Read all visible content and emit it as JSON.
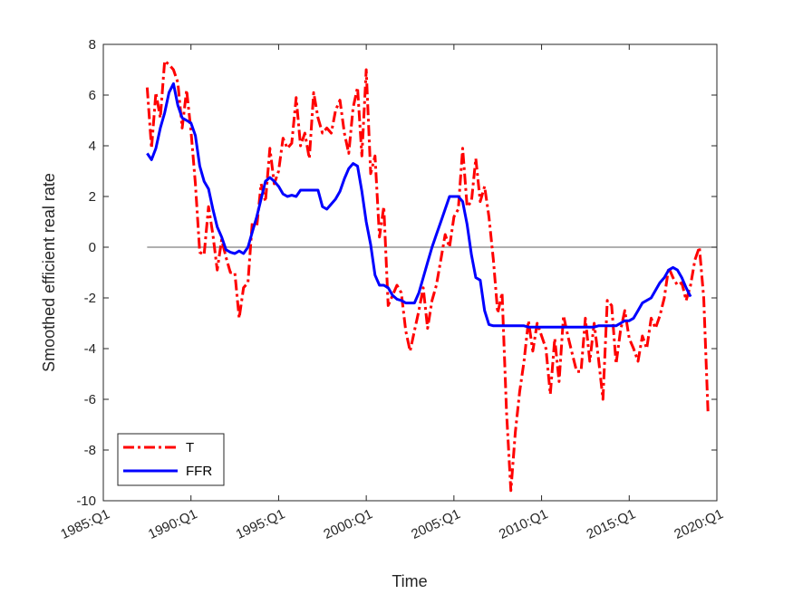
{
  "chart_data": {
    "type": "line",
    "xlabel": "Time",
    "ylabel": "Smoothed efficient real rate",
    "xlim": [
      1985.0,
      2020.0
    ],
    "ylim": [
      -10,
      8
    ],
    "x_tick_values": [
      1985,
      1990,
      1995,
      2000,
      2005,
      2010,
      2015,
      2020
    ],
    "x_tick_labels": [
      "1985:Q1",
      "1990:Q1",
      "1995:Q1",
      "2000:Q1",
      "2005:Q1",
      "2010:Q1",
      "2015:Q1",
      "2020:Q1"
    ],
    "y_ticks": [
      -10,
      -8,
      -6,
      -4,
      -2,
      0,
      2,
      4,
      6,
      8
    ],
    "y_tick_labels": [
      "-10",
      "-8",
      "-6",
      "-4",
      "-2",
      "0",
      "2",
      "4",
      "6",
      "8"
    ],
    "grid": false,
    "legend": {
      "position": "bottom-left"
    },
    "reference_line": {
      "y": 0,
      "x_range": [
        1987.5,
        2020.0
      ],
      "color": "#808080"
    },
    "series": [
      {
        "name": "T",
        "color": "#ff0000",
        "style": "dash-dot",
        "points": [
          [
            1987.5,
            6.3
          ],
          [
            1987.75,
            3.9
          ],
          [
            1988.0,
            6.1
          ],
          [
            1988.25,
            5.1
          ],
          [
            1988.5,
            7.35
          ],
          [
            1988.75,
            7.2
          ],
          [
            1989.0,
            7.0
          ],
          [
            1989.25,
            6.5
          ],
          [
            1989.5,
            4.7
          ],
          [
            1989.75,
            6.2
          ],
          [
            1990.0,
            4.6
          ],
          [
            1990.25,
            2.5
          ],
          [
            1990.5,
            -0.2
          ],
          [
            1990.75,
            -0.3
          ],
          [
            1991.0,
            1.6
          ],
          [
            1991.25,
            0.5
          ],
          [
            1991.5,
            -0.9
          ],
          [
            1991.75,
            0.3
          ],
          [
            1992.0,
            -0.4
          ],
          [
            1992.25,
            -1.0
          ],
          [
            1992.5,
            -1.0
          ],
          [
            1992.75,
            -2.8
          ],
          [
            1993.0,
            -1.6
          ],
          [
            1993.25,
            -1.4
          ],
          [
            1993.5,
            1.0
          ],
          [
            1993.75,
            0.8
          ],
          [
            1994.0,
            2.5
          ],
          [
            1994.25,
            1.8
          ],
          [
            1994.5,
            3.9
          ],
          [
            1994.75,
            2.5
          ],
          [
            1995.0,
            3.0
          ],
          [
            1995.25,
            4.3
          ],
          [
            1995.5,
            3.9
          ],
          [
            1995.75,
            4.1
          ],
          [
            1996.0,
            5.9
          ],
          [
            1996.25,
            4.0
          ],
          [
            1996.5,
            4.5
          ],
          [
            1996.75,
            3.5
          ],
          [
            1997.0,
            6.1
          ],
          [
            1997.25,
            5.1
          ],
          [
            1997.5,
            4.5
          ],
          [
            1997.75,
            4.7
          ],
          [
            1998.0,
            4.5
          ],
          [
            1998.25,
            5.4
          ],
          [
            1998.5,
            5.8
          ],
          [
            1998.75,
            4.5
          ],
          [
            1999.0,
            3.7
          ],
          [
            1999.25,
            5.5
          ],
          [
            1999.5,
            6.3
          ],
          [
            1999.75,
            3.6
          ],
          [
            2000.0,
            7.0
          ],
          [
            2000.25,
            2.9
          ],
          [
            2000.5,
            3.6
          ],
          [
            2000.75,
            0.4
          ],
          [
            2001.0,
            1.6
          ],
          [
            2001.25,
            -2.3
          ],
          [
            2001.5,
            -1.9
          ],
          [
            2001.75,
            -1.5
          ],
          [
            2002.0,
            -1.8
          ],
          [
            2002.25,
            -3.3
          ],
          [
            2002.5,
            -4.1
          ],
          [
            2002.75,
            -3.3
          ],
          [
            2003.0,
            -2.5
          ],
          [
            2003.25,
            -1.6
          ],
          [
            2003.5,
            -3.2
          ],
          [
            2003.75,
            -2.1
          ],
          [
            2004.0,
            -1.5
          ],
          [
            2004.25,
            -0.5
          ],
          [
            2004.5,
            0.5
          ],
          [
            2004.75,
            0.0
          ],
          [
            2005.0,
            1.2
          ],
          [
            2005.25,
            1.5
          ],
          [
            2005.5,
            3.9
          ],
          [
            2005.75,
            1.6
          ],
          [
            2006.0,
            1.8
          ],
          [
            2006.25,
            3.5
          ],
          [
            2006.5,
            1.8
          ],
          [
            2006.75,
            2.4
          ],
          [
            2007.0,
            1.2
          ],
          [
            2007.25,
            -0.5
          ],
          [
            2007.5,
            -2.6
          ],
          [
            2007.75,
            -1.8
          ],
          [
            2008.0,
            -6.5
          ],
          [
            2008.25,
            -9.6
          ],
          [
            2008.5,
            -7.3
          ],
          [
            2008.75,
            -5.7
          ],
          [
            2009.0,
            -4.5
          ],
          [
            2009.25,
            -2.9
          ],
          [
            2009.5,
            -4.1
          ],
          [
            2009.75,
            -3.0
          ],
          [
            2010.0,
            -3.5
          ],
          [
            2010.25,
            -4.0
          ],
          [
            2010.5,
            -5.8
          ],
          [
            2010.75,
            -3.6
          ],
          [
            2011.0,
            -5.3
          ],
          [
            2011.25,
            -2.7
          ],
          [
            2011.5,
            -3.5
          ],
          [
            2011.75,
            -4.2
          ],
          [
            2012.0,
            -4.9
          ],
          [
            2012.25,
            -4.9
          ],
          [
            2012.5,
            -2.8
          ],
          [
            2012.75,
            -4.5
          ],
          [
            2013.0,
            -3.0
          ],
          [
            2013.25,
            -4.4
          ],
          [
            2013.5,
            -6.0
          ],
          [
            2013.75,
            -2.1
          ],
          [
            2014.0,
            -2.3
          ],
          [
            2014.25,
            -4.6
          ],
          [
            2014.5,
            -3.3
          ],
          [
            2014.75,
            -2.5
          ],
          [
            2015.0,
            -3.6
          ],
          [
            2015.25,
            -4.0
          ],
          [
            2015.5,
            -4.5
          ],
          [
            2015.75,
            -3.5
          ],
          [
            2016.0,
            -4.0
          ],
          [
            2016.25,
            -2.8
          ],
          [
            2016.5,
            -3.2
          ],
          [
            2016.75,
            -2.7
          ],
          [
            2017.0,
            -2.0
          ],
          [
            2017.25,
            -0.8
          ],
          [
            2017.5,
            -1.2
          ],
          [
            2017.75,
            -1.5
          ],
          [
            2018.0,
            -1.4
          ],
          [
            2018.25,
            -2.1
          ],
          [
            2018.5,
            -1.5
          ],
          [
            2018.75,
            -0.5
          ],
          [
            2019.0,
            0.0
          ],
          [
            2019.25,
            -2.0
          ],
          [
            2019.5,
            -6.6
          ]
        ]
      },
      {
        "name": "FFR",
        "color": "#0000ff",
        "style": "solid",
        "points": [
          [
            1987.5,
            3.7
          ],
          [
            1987.75,
            3.45
          ],
          [
            1988.0,
            3.9
          ],
          [
            1988.25,
            4.7
          ],
          [
            1988.5,
            5.3
          ],
          [
            1988.75,
            6.1
          ],
          [
            1989.0,
            6.45
          ],
          [
            1989.25,
            5.6
          ],
          [
            1989.5,
            5.1
          ],
          [
            1989.75,
            5.0
          ],
          [
            1990.0,
            4.9
          ],
          [
            1990.25,
            4.4
          ],
          [
            1990.5,
            3.2
          ],
          [
            1990.75,
            2.6
          ],
          [
            1991.0,
            2.3
          ],
          [
            1991.25,
            1.5
          ],
          [
            1991.5,
            0.8
          ],
          [
            1991.75,
            0.4
          ],
          [
            1992.0,
            -0.1
          ],
          [
            1992.25,
            -0.2
          ],
          [
            1992.5,
            -0.25
          ],
          [
            1992.75,
            -0.15
          ],
          [
            1993.0,
            -0.25
          ],
          [
            1993.25,
            0.0
          ],
          [
            1993.5,
            0.6
          ],
          [
            1993.75,
            1.2
          ],
          [
            1994.0,
            1.9
          ],
          [
            1994.25,
            2.6
          ],
          [
            1994.5,
            2.75
          ],
          [
            1994.75,
            2.6
          ],
          [
            1995.0,
            2.4
          ],
          [
            1995.25,
            2.1
          ],
          [
            1995.5,
            2.0
          ],
          [
            1995.75,
            2.05
          ],
          [
            1996.0,
            2.0
          ],
          [
            1996.25,
            2.25
          ],
          [
            1996.5,
            2.25
          ],
          [
            1996.75,
            2.25
          ],
          [
            1997.0,
            2.25
          ],
          [
            1997.25,
            2.25
          ],
          [
            1997.5,
            1.6
          ],
          [
            1997.75,
            1.5
          ],
          [
            1998.0,
            1.7
          ],
          [
            1998.25,
            1.9
          ],
          [
            1998.5,
            2.2
          ],
          [
            1998.75,
            2.7
          ],
          [
            1999.0,
            3.1
          ],
          [
            1999.25,
            3.3
          ],
          [
            1999.5,
            3.2
          ],
          [
            1999.75,
            2.2
          ],
          [
            2000.0,
            1.0
          ],
          [
            2000.25,
            0.1
          ],
          [
            2000.5,
            -1.1
          ],
          [
            2000.75,
            -1.5
          ],
          [
            2001.0,
            -1.5
          ],
          [
            2001.25,
            -1.6
          ],
          [
            2001.5,
            -1.9
          ],
          [
            2001.75,
            -2.05
          ],
          [
            2002.0,
            -2.1
          ],
          [
            2002.25,
            -2.2
          ],
          [
            2002.5,
            -2.2
          ],
          [
            2002.75,
            -2.2
          ],
          [
            2003.0,
            -1.8
          ],
          [
            2003.25,
            -1.2
          ],
          [
            2003.5,
            -0.6
          ],
          [
            2003.75,
            0.0
          ],
          [
            2004.0,
            0.5
          ],
          [
            2004.25,
            1.0
          ],
          [
            2004.5,
            1.5
          ],
          [
            2004.75,
            2.0
          ],
          [
            2005.0,
            2.0
          ],
          [
            2005.25,
            2.0
          ],
          [
            2005.5,
            1.8
          ],
          [
            2005.75,
            0.9
          ],
          [
            2006.0,
            -0.3
          ],
          [
            2006.25,
            -1.2
          ],
          [
            2006.5,
            -1.3
          ],
          [
            2006.75,
            -2.5
          ],
          [
            2007.0,
            -3.05
          ],
          [
            2007.25,
            -3.1
          ],
          [
            2007.5,
            -3.1
          ],
          [
            2007.75,
            -3.1
          ],
          [
            2008.0,
            -3.1
          ],
          [
            2008.25,
            -3.1
          ],
          [
            2008.5,
            -3.1
          ],
          [
            2008.75,
            -3.1
          ],
          [
            2009.0,
            -3.1
          ],
          [
            2009.25,
            -3.15
          ],
          [
            2009.5,
            -3.15
          ],
          [
            2009.75,
            -3.15
          ],
          [
            2010.0,
            -3.15
          ],
          [
            2010.25,
            -3.15
          ],
          [
            2010.5,
            -3.15
          ],
          [
            2010.75,
            -3.15
          ],
          [
            2011.0,
            -3.15
          ],
          [
            2011.25,
            -3.15
          ],
          [
            2011.5,
            -3.15
          ],
          [
            2011.75,
            -3.15
          ],
          [
            2012.0,
            -3.15
          ],
          [
            2012.25,
            -3.15
          ],
          [
            2012.5,
            -3.15
          ],
          [
            2012.75,
            -3.15
          ],
          [
            2013.0,
            -3.15
          ],
          [
            2013.25,
            -3.1
          ],
          [
            2013.5,
            -3.1
          ],
          [
            2013.75,
            -3.1
          ],
          [
            2014.0,
            -3.1
          ],
          [
            2014.25,
            -3.1
          ],
          [
            2014.5,
            -3.0
          ],
          [
            2014.75,
            -2.9
          ],
          [
            2015.0,
            -2.9
          ],
          [
            2015.25,
            -2.8
          ],
          [
            2015.5,
            -2.5
          ],
          [
            2015.75,
            -2.2
          ],
          [
            2016.0,
            -2.1
          ],
          [
            2016.25,
            -2.0
          ],
          [
            2016.5,
            -1.7
          ],
          [
            2016.75,
            -1.4
          ],
          [
            2017.0,
            -1.2
          ],
          [
            2017.25,
            -0.9
          ],
          [
            2017.5,
            -0.8
          ],
          [
            2017.75,
            -0.9
          ],
          [
            2018.0,
            -1.2
          ],
          [
            2018.25,
            -1.6
          ],
          [
            2018.5,
            -1.95
          ]
        ]
      }
    ]
  }
}
